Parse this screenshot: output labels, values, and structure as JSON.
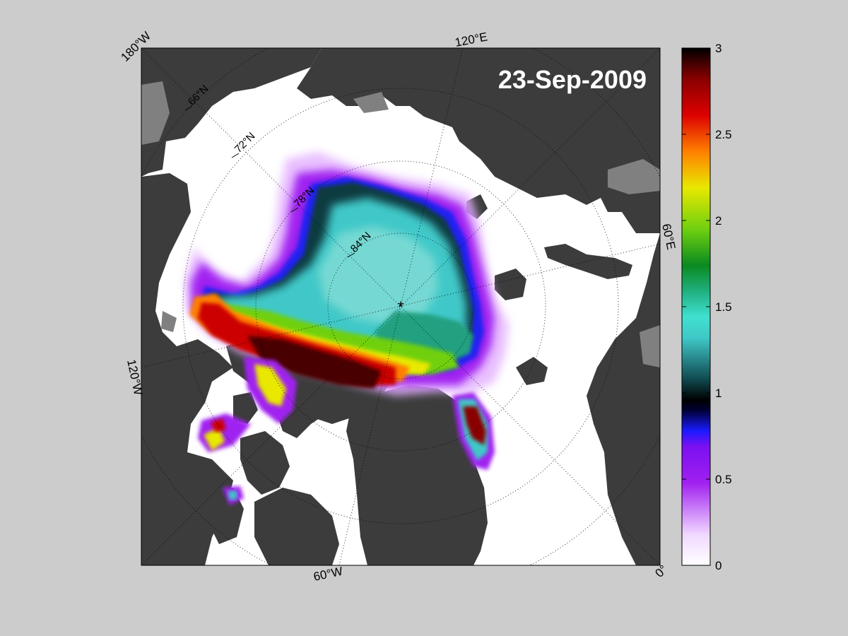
{
  "map": {
    "date_label": "23-Sep-2009",
    "projection": "north polar stereographic",
    "variable": "sea ice thickness",
    "colors": {
      "background": "#cccccc",
      "ocean": "#ffffff",
      "land": "#3c3c3c",
      "land_alt": "#808080",
      "grid": "#000000"
    },
    "longitude_labels": [
      "180°W",
      "120°E",
      "60°E",
      "0°",
      "60°W",
      "120°W"
    ],
    "latitude_labels": [
      "66°N",
      "72°N",
      "78°N",
      "84°N"
    ],
    "pole_marker": "*"
  },
  "colorbar": {
    "min": 0,
    "max": 3,
    "ticks": [
      "0",
      "0.5",
      "1",
      "1.5",
      "2",
      "2.5",
      "3"
    ],
    "colors": [
      "#ffffff",
      "#e5b5ff",
      "#a020f0",
      "#1a1aff",
      "#000000",
      "#104a50",
      "#40e0d0",
      "#0a8a20",
      "#70d010",
      "#e8e800",
      "#ff8000",
      "#cc0000",
      "#8a0000",
      "#000000"
    ]
  }
}
